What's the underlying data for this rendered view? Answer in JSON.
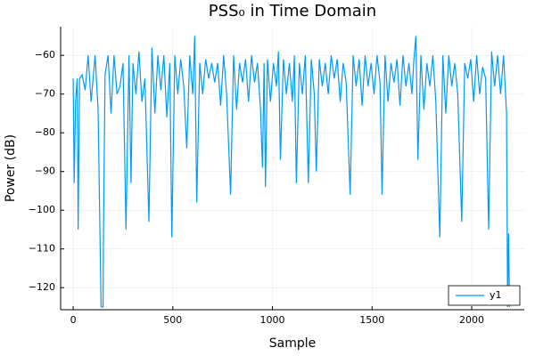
{
  "chart_data": {
    "type": "line",
    "title": "PSS₀ in Time Domain",
    "x_label": "Sample",
    "y_label": "Power (dB)",
    "x": [
      0,
      5,
      12,
      20,
      25,
      32,
      45,
      60,
      75,
      90,
      100,
      110,
      125,
      140,
      150,
      152,
      160,
      175,
      190,
      205,
      220,
      235,
      250,
      265,
      280,
      290,
      300,
      315,
      330,
      345,
      360,
      380,
      395,
      410,
      425,
      440,
      455,
      470,
      485,
      495,
      510,
      525,
      540,
      555,
      570,
      585,
      600,
      610,
      620,
      635,
      650,
      665,
      680,
      695,
      710,
      725,
      740,
      755,
      770,
      790,
      805,
      820,
      835,
      850,
      865,
      880,
      895,
      910,
      925,
      940,
      950,
      958,
      965,
      975,
      990,
      1005,
      1020,
      1030,
      1040,
      1055,
      1070,
      1085,
      1100,
      1110,
      1120,
      1135,
      1150,
      1165,
      1180,
      1195,
      1210,
      1220,
      1235,
      1250,
      1265,
      1280,
      1295,
      1310,
      1325,
      1340,
      1355,
      1370,
      1390,
      1405,
      1420,
      1435,
      1450,
      1465,
      1480,
      1495,
      1510,
      1525,
      1540,
      1550,
      1565,
      1580,
      1595,
      1610,
      1625,
      1640,
      1655,
      1670,
      1685,
      1700,
      1710,
      1720,
      1730,
      1745,
      1760,
      1775,
      1790,
      1805,
      1820,
      1840,
      1855,
      1870,
      1885,
      1900,
      1915,
      1930,
      1950,
      1965,
      1980,
      1995,
      2010,
      2025,
      2040,
      2055,
      2070,
      2085,
      2100,
      2115,
      2130,
      2145,
      2160,
      2175,
      2180,
      2185,
      2190
    ],
    "series": [
      {
        "name": "y1",
        "color": "#009af9",
        "values": [
          -66,
          -93,
          -72,
          -66,
          -105,
          -66,
          -65,
          -69,
          -60,
          -72,
          -66,
          -60,
          -74,
          -125,
          -125,
          -106,
          -65,
          -60,
          -75,
          -60,
          -70,
          -68,
          -62,
          -105,
          -60,
          -93,
          -62,
          -70,
          -59,
          -72,
          -66,
          -103,
          -58,
          -75,
          -60,
          -69,
          -60,
          -76,
          -62,
          -107,
          -60,
          -70,
          -61,
          -68,
          -84,
          -60,
          -70,
          -55,
          -98,
          -62,
          -70,
          -61,
          -66,
          -62,
          -67,
          -62,
          -73,
          -60,
          -70,
          -96,
          -60,
          -74,
          -62,
          -67,
          -61,
          -72,
          -60,
          -67,
          -62,
          -74,
          -89,
          -62,
          -94,
          -61,
          -72,
          -62,
          -68,
          -59,
          -87,
          -61,
          -70,
          -62,
          -72,
          -60,
          -93,
          -62,
          -70,
          -60,
          -93,
          -61,
          -70,
          -90,
          -61,
          -68,
          -62,
          -70,
          -60,
          -66,
          -61,
          -72,
          -62,
          -67,
          -96,
          -60,
          -68,
          -61,
          -73,
          -60,
          -68,
          -62,
          -70,
          -60,
          -67,
          -96,
          -60,
          -72,
          -62,
          -67,
          -61,
          -73,
          -60,
          -68,
          -62,
          -70,
          -61,
          -55,
          -87,
          -60,
          -74,
          -62,
          -68,
          -60,
          -72,
          -107,
          -60,
          -75,
          -60,
          -68,
          -62,
          -70,
          -103,
          -62,
          -66,
          -61,
          -72,
          -60,
          -70,
          -63,
          -66,
          -105,
          -59,
          -68,
          -60,
          -70,
          -60,
          -75,
          -125,
          -106,
          -125
        ]
      }
    ],
    "xlim": [
      -63,
      2264
    ],
    "ylim": [
      -125.7,
      -52.6
    ],
    "xticks": [
      0,
      500,
      1000,
      1500,
      2000
    ],
    "yticks": [
      {
        "value": -120,
        "label": "−120"
      },
      {
        "value": -110,
        "label": "−110"
      },
      {
        "value": -100,
        "label": "−100"
      },
      {
        "value": -90,
        "label": "−90"
      },
      {
        "value": -80,
        "label": "−80"
      },
      {
        "value": -70,
        "label": "−70"
      },
      {
        "value": -60,
        "label": "−60"
      }
    ],
    "grid": true,
    "legend": "lower-right"
  }
}
